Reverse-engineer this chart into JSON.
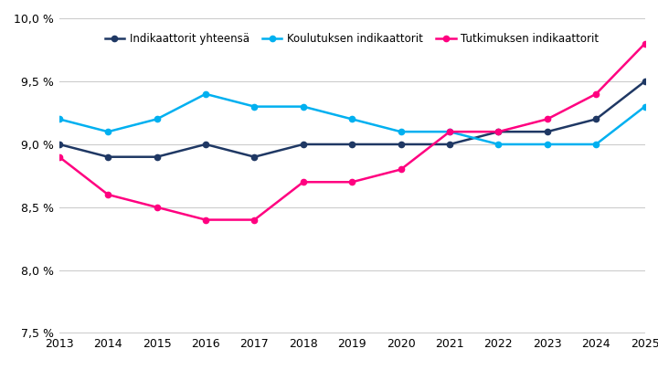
{
  "years": [
    2013,
    2014,
    2015,
    2016,
    2017,
    2018,
    2019,
    2020,
    2021,
    2022,
    2023,
    2024,
    2025
  ],
  "indikaattorit_yhteensa": [
    9.0,
    8.9,
    8.9,
    9.0,
    8.9,
    9.0,
    9.0,
    9.0,
    9.0,
    9.1,
    9.1,
    9.2,
    9.5
  ],
  "koulutuksen_indikaattorit": [
    9.2,
    9.1,
    9.2,
    9.4,
    9.3,
    9.3,
    9.2,
    9.1,
    9.1,
    9.0,
    9.0,
    9.0,
    9.3
  ],
  "tutkimuksen_indikaattorit": [
    8.9,
    8.6,
    8.5,
    8.4,
    8.4,
    8.7,
    8.7,
    8.8,
    9.1,
    9.1,
    9.2,
    9.4,
    9.8
  ],
  "color_yhteensa": "#1f3864",
  "color_koulutus": "#00b0f0",
  "color_tutkimus": "#ff0080",
  "ylim_min": 7.5,
  "ylim_max": 10.0,
  "yticks": [
    7.5,
    8.0,
    8.5,
    9.0,
    9.5,
    10.0
  ],
  "ytick_labels": [
    "7,5 %",
    "8,0 %",
    "8,5 %",
    "9,0 %",
    "9,5 %",
    "10,0 %"
  ],
  "legend_label_yhteensa": "Indikaattorit yhteensä",
  "legend_label_koulutus": "Koulutuksen indikaattorit",
  "legend_label_tutkimus": "Tutkimuksen indikaattorit",
  "background_color": "#ffffff",
  "grid_color": "#cccccc"
}
